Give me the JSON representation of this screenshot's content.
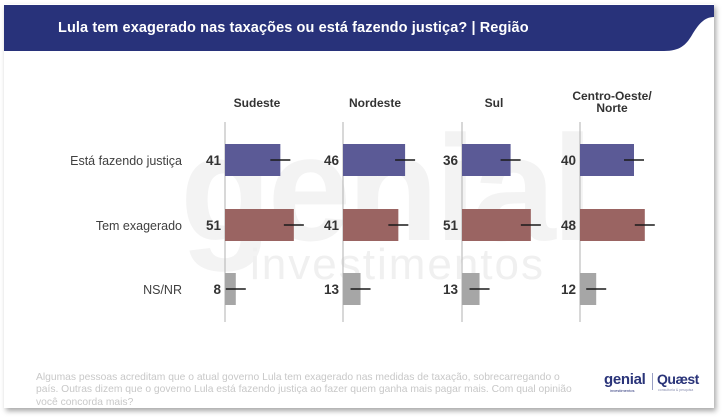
{
  "header": {
    "title": "Lula tem exagerado nas taxações ou está fazendo justiça? | Região"
  },
  "watermark": {
    "brand": "genial",
    "sub": "investimentos"
  },
  "chart_data": {
    "type": "bar",
    "orientation": "horizontal",
    "title": "Lula tem exagerado nas taxações ou está fazendo justiça? | Região",
    "categories": [
      "Está fazendo justiça",
      "Tem exagerado",
      "NS/NR"
    ],
    "panels": [
      {
        "name": "Sudeste",
        "values": [
          41,
          51,
          8
        ]
      },
      {
        "name": "Nordeste",
        "values": [
          46,
          41,
          13
        ]
      },
      {
        "name": "Sul",
        "values": [
          36,
          51,
          13
        ]
      },
      {
        "name": "Centro-Oeste/\nNorte",
        "values": [
          40,
          48,
          12
        ]
      }
    ],
    "series_colors": [
      "#5b5a96",
      "#9a6462",
      "#a6a6a6"
    ],
    "error_bars": true,
    "xlim": [
      0,
      100
    ],
    "grid": false,
    "legend": "none",
    "xlabel": "",
    "ylabel": ""
  },
  "footer": {
    "question": "Algumas pessoas acreditam que o atual governo Lula tem exagerado nas medidas de taxação, sobrecarregando o país. Outras dizem que o governo Lula está fazendo justiça ao fazer quem ganha mais pagar mais. Com qual opinião você concorda mais?",
    "logo_genial": "genial",
    "logo_genial_sub": "investimentos",
    "logo_quaest": "Quæst",
    "logo_quaest_sub": "consultoria & pesquisa"
  },
  "colors": {
    "header_bg": "#28327a",
    "bar_justica": "#5b5a96",
    "bar_exagerado": "#9a6462",
    "bar_nsnr": "#a6a6a6",
    "axis": "#bdbdbd",
    "label_text": "#404040",
    "question_text": "#c8c8c8"
  }
}
